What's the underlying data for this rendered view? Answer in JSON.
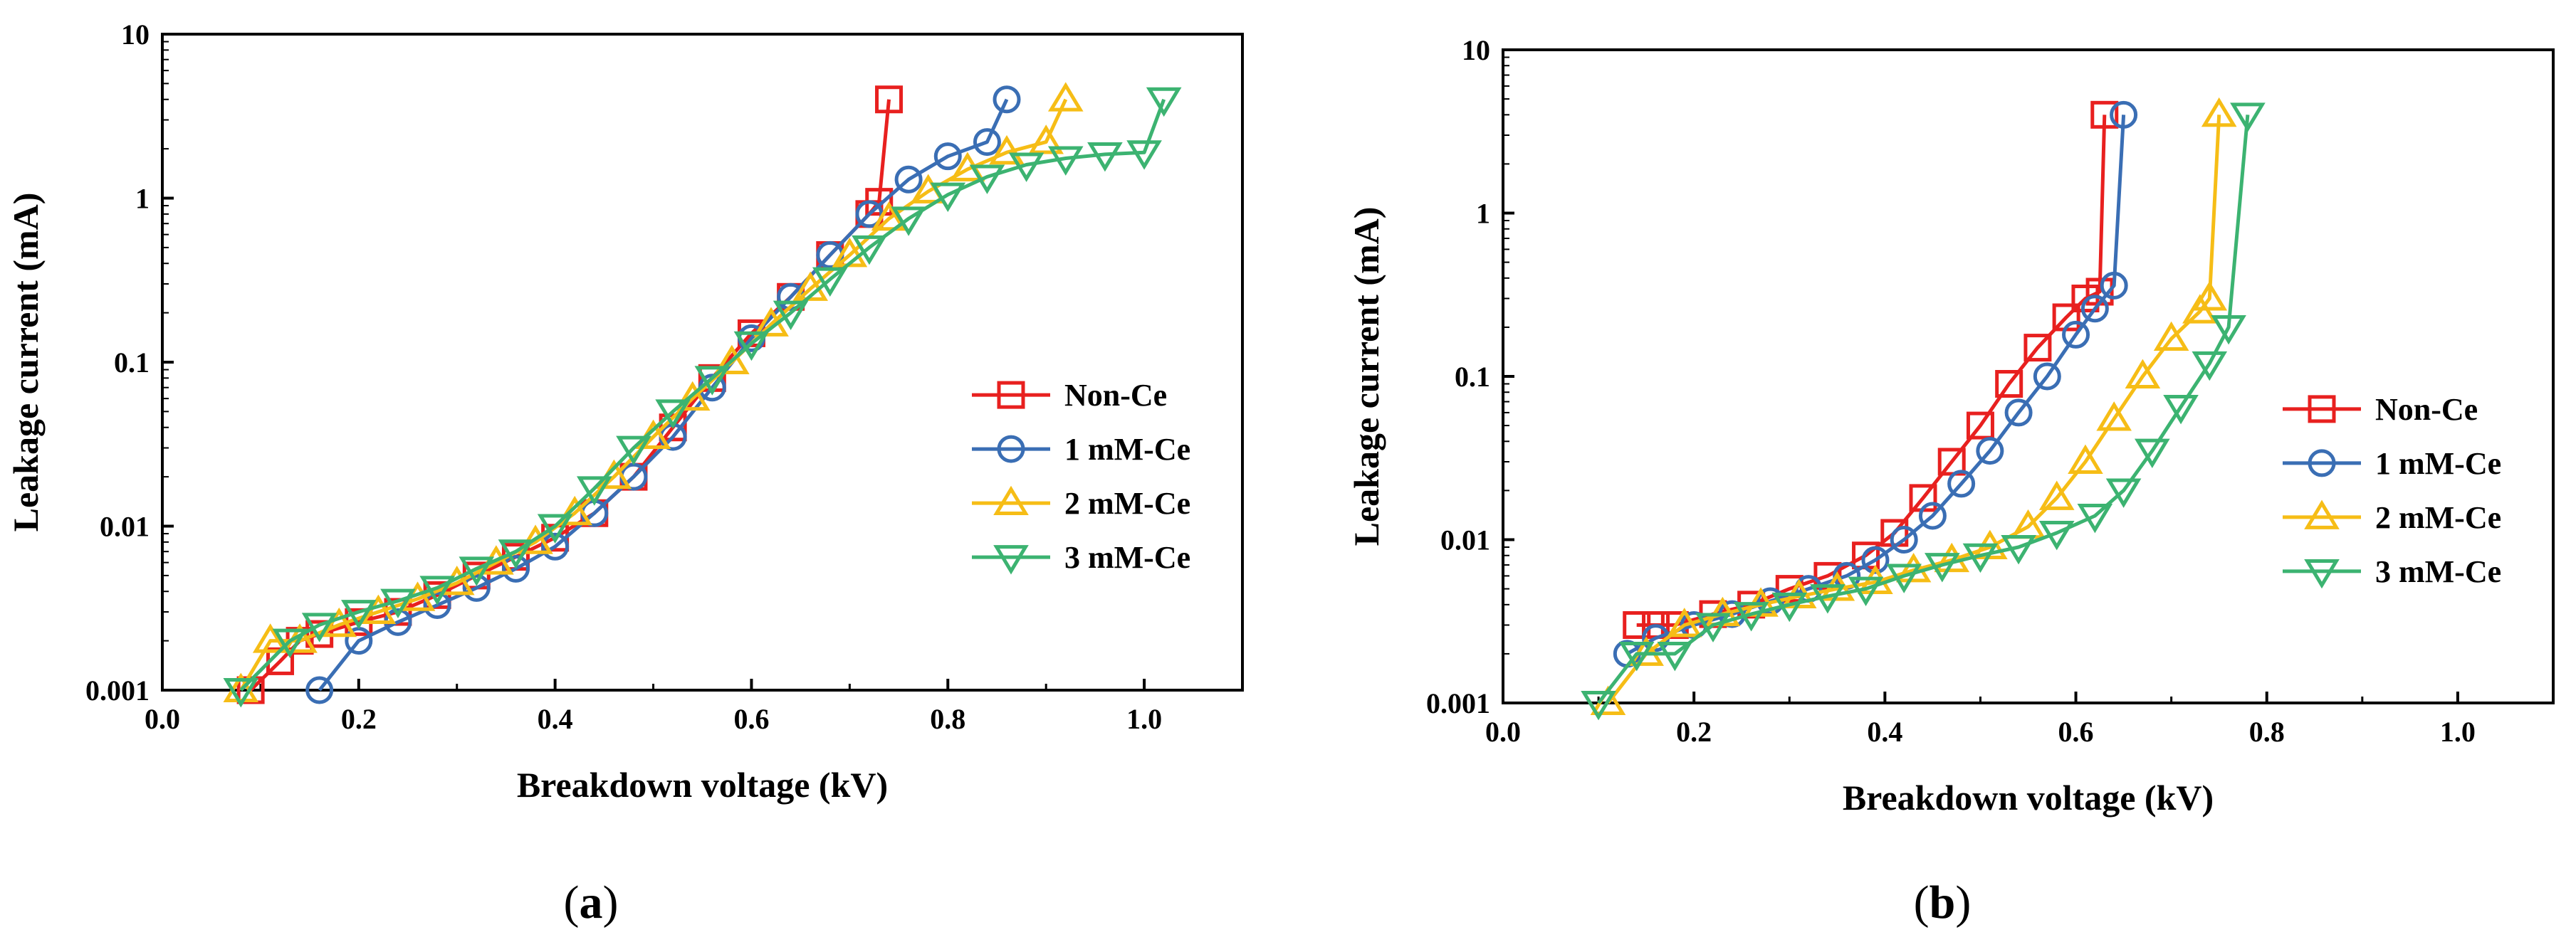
{
  "chart_data": [
    {
      "type": "line",
      "panel_label_prefix": "(",
      "panel_label_letter": "a",
      "panel_label_suffix": ")",
      "xlabel": "Breakdown voltage (kV)",
      "ylabel": "Leakage current (mA)",
      "xlim": [
        0.0,
        1.1
      ],
      "ylim": [
        0.001,
        10
      ],
      "yscale": "log",
      "xticks": [
        "0.0",
        "0.2",
        "0.4",
        "0.6",
        "0.8",
        "1.0"
      ],
      "yticks": [
        "0.001",
        "0.01",
        "0.1",
        "1",
        "10"
      ],
      "legend_position": "center-right",
      "series": [
        {
          "name": "Non-Ce",
          "color": "#e8201f",
          "marker": "square",
          "x": [
            0.09,
            0.12,
            0.14,
            0.16,
            0.2,
            0.24,
            0.28,
            0.32,
            0.36,
            0.4,
            0.44,
            0.48,
            0.52,
            0.56,
            0.6,
            0.64,
            0.68,
            0.72,
            0.73,
            0.74
          ],
          "y": [
            0.001,
            0.0015,
            0.002,
            0.0022,
            0.0026,
            0.003,
            0.0038,
            0.005,
            0.0065,
            0.0085,
            0.012,
            0.02,
            0.04,
            0.08,
            0.15,
            0.25,
            0.45,
            0.8,
            0.95,
            4
          ]
        },
        {
          "name": "1 mM-Ce",
          "color": "#3a6eb4",
          "marker": "circle",
          "x": [
            0.16,
            0.2,
            0.24,
            0.28,
            0.32,
            0.36,
            0.4,
            0.44,
            0.48,
            0.52,
            0.56,
            0.6,
            0.64,
            0.68,
            0.72,
            0.76,
            0.8,
            0.84,
            0.86
          ],
          "y": [
            0.001,
            0.002,
            0.0026,
            0.0033,
            0.0042,
            0.0055,
            0.0075,
            0.012,
            0.02,
            0.035,
            0.07,
            0.14,
            0.25,
            0.45,
            0.8,
            1.3,
            1.8,
            2.2,
            4
          ]
        },
        {
          "name": "2 mM-Ce",
          "color": "#f6bd16",
          "marker": "triangle-up",
          "x": [
            0.08,
            0.11,
            0.14,
            0.18,
            0.22,
            0.26,
            0.3,
            0.34,
            0.38,
            0.42,
            0.46,
            0.5,
            0.54,
            0.58,
            0.62,
            0.66,
            0.7,
            0.74,
            0.78,
            0.82,
            0.86,
            0.9,
            0.92
          ],
          "y": [
            0.001,
            0.002,
            0.002,
            0.0025,
            0.003,
            0.0036,
            0.0045,
            0.006,
            0.008,
            0.012,
            0.02,
            0.035,
            0.06,
            0.1,
            0.17,
            0.28,
            0.45,
            0.75,
            1.1,
            1.5,
            1.9,
            2.2,
            4
          ]
        },
        {
          "name": "3 mM-Ce",
          "color": "#3cb371",
          "marker": "triangle-down",
          "x": [
            0.08,
            0.13,
            0.16,
            0.2,
            0.24,
            0.28,
            0.32,
            0.36,
            0.4,
            0.44,
            0.48,
            0.52,
            0.56,
            0.6,
            0.64,
            0.68,
            0.72,
            0.76,
            0.8,
            0.84,
            0.88,
            0.92,
            0.96,
            1.0,
            1.02
          ],
          "y": [
            0.001,
            0.002,
            0.0025,
            0.003,
            0.0035,
            0.0042,
            0.0055,
            0.007,
            0.01,
            0.017,
            0.03,
            0.05,
            0.08,
            0.13,
            0.2,
            0.32,
            0.5,
            0.75,
            1.05,
            1.35,
            1.6,
            1.75,
            1.85,
            1.9,
            4
          ]
        }
      ]
    },
    {
      "type": "line",
      "panel_label_prefix": "(",
      "panel_label_letter": "b",
      "panel_label_suffix": ")",
      "xlabel": "Breakdown voltage (kV)",
      "ylabel": "Leakage current (mA)",
      "xlim": [
        0.0,
        1.1
      ],
      "ylim": [
        0.001,
        10
      ],
      "yscale": "log",
      "xticks": [
        "0.0",
        "0.2",
        "0.4",
        "0.6",
        "0.8",
        "1.0"
      ],
      "yticks": [
        "0.001",
        "0.01",
        "0.1",
        "1",
        "10"
      ],
      "legend_position": "center-right",
      "series": [
        {
          "name": "Non-Ce",
          "color": "#e8201f",
          "marker": "square",
          "x": [
            0.14,
            0.16,
            0.18,
            0.22,
            0.26,
            0.3,
            0.34,
            0.38,
            0.41,
            0.44,
            0.47,
            0.5,
            0.53,
            0.56,
            0.59,
            0.61,
            0.625,
            0.63
          ],
          "y": [
            0.003,
            0.003,
            0.003,
            0.0035,
            0.004,
            0.005,
            0.006,
            0.008,
            0.011,
            0.018,
            0.03,
            0.05,
            0.09,
            0.15,
            0.23,
            0.3,
            0.33,
            4
          ]
        },
        {
          "name": "1 mM-Ce",
          "color": "#3a6eb4",
          "marker": "circle",
          "x": [
            0.13,
            0.16,
            0.2,
            0.24,
            0.28,
            0.32,
            0.36,
            0.39,
            0.42,
            0.45,
            0.48,
            0.51,
            0.54,
            0.57,
            0.6,
            0.62,
            0.64,
            0.65
          ],
          "y": [
            0.002,
            0.0025,
            0.003,
            0.0035,
            0.0042,
            0.005,
            0.006,
            0.0075,
            0.01,
            0.014,
            0.022,
            0.035,
            0.06,
            0.1,
            0.18,
            0.26,
            0.36,
            4
          ]
        },
        {
          "name": "2 mM-Ce",
          "color": "#f6bd16",
          "marker": "triangle-up",
          "x": [
            0.11,
            0.15,
            0.19,
            0.23,
            0.27,
            0.31,
            0.35,
            0.39,
            0.43,
            0.47,
            0.51,
            0.55,
            0.58,
            0.61,
            0.64,
            0.67,
            0.7,
            0.73,
            0.74,
            0.75
          ],
          "y": [
            0.001,
            0.002,
            0.003,
            0.0035,
            0.004,
            0.0045,
            0.005,
            0.0055,
            0.0065,
            0.0075,
            0.009,
            0.012,
            0.018,
            0.03,
            0.055,
            0.1,
            0.17,
            0.25,
            0.3,
            4
          ]
        },
        {
          "name": "3 mM-Ce",
          "color": "#3cb371",
          "marker": "triangle-down",
          "x": [
            0.1,
            0.14,
            0.18,
            0.22,
            0.26,
            0.3,
            0.34,
            0.38,
            0.42,
            0.46,
            0.5,
            0.54,
            0.58,
            0.62,
            0.65,
            0.68,
            0.71,
            0.74,
            0.76,
            0.78
          ],
          "y": [
            0.001,
            0.002,
            0.002,
            0.003,
            0.0035,
            0.004,
            0.0045,
            0.005,
            0.006,
            0.007,
            0.008,
            0.009,
            0.011,
            0.014,
            0.02,
            0.035,
            0.065,
            0.12,
            0.2,
            4
          ]
        }
      ]
    }
  ]
}
